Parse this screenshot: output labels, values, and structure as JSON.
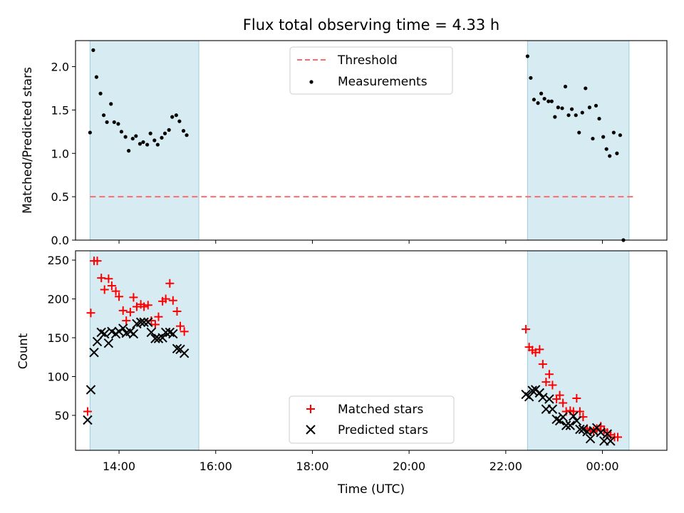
{
  "chart_data": [
    {
      "type": "scatter",
      "title": "Flux total observing time = 4.33 h",
      "xlabel": "",
      "ylabel": "Matched/Predicted stars",
      "xlim": [
        "13:06",
        "01:20"
      ],
      "ylim": [
        0,
        2.3
      ],
      "yticks": [
        0.0,
        0.5,
        1.0,
        1.5,
        2.0
      ],
      "ytick_labels": [
        "0.0",
        "0.5",
        "1.0",
        "1.5",
        "2.0"
      ],
      "grid": false,
      "legend_placement": "top-center",
      "legend": [
        "Threshold",
        "Measurements"
      ],
      "shaded_intervals": [
        [
          "13:24",
          "15:39"
        ],
        [
          "22:27",
          "00:33"
        ]
      ],
      "threshold": {
        "name": "Threshold",
        "y": 0.5,
        "x_range": [
          "13:24",
          "00:40"
        ],
        "style": "dashed",
        "color": "#ff6b6b"
      },
      "series": [
        {
          "name": "Measurements",
          "color": "#000000",
          "points": [
            [
              "13:24",
              1.24
            ],
            [
              "13:28",
              2.19
            ],
            [
              "13:32",
              1.88
            ],
            [
              "13:37",
              1.69
            ],
            [
              "13:41",
              1.44
            ],
            [
              "13:45",
              1.36
            ],
            [
              "13:50",
              1.57
            ],
            [
              "13:54",
              1.36
            ],
            [
              "13:59",
              1.34
            ],
            [
              "14:03",
              1.25
            ],
            [
              "14:08",
              1.19
            ],
            [
              "14:12",
              1.03
            ],
            [
              "14:17",
              1.17
            ],
            [
              "14:21",
              1.2
            ],
            [
              "14:26",
              1.11
            ],
            [
              "14:30",
              1.13
            ],
            [
              "14:35",
              1.1
            ],
            [
              "14:39",
              1.23
            ],
            [
              "14:44",
              1.15
            ],
            [
              "14:48",
              1.1
            ],
            [
              "14:53",
              1.18
            ],
            [
              "14:57",
              1.23
            ],
            [
              "15:02",
              1.27
            ],
            [
              "15:06",
              1.42
            ],
            [
              "15:11",
              1.44
            ],
            [
              "15:15",
              1.37
            ],
            [
              "15:20",
              1.26
            ],
            [
              "15:24",
              1.21
            ],
            [
              "22:27",
              2.12
            ],
            [
              "22:31",
              1.87
            ],
            [
              "22:35",
              1.62
            ],
            [
              "22:40",
              1.58
            ],
            [
              "22:44",
              1.69
            ],
            [
              "22:48",
              1.63
            ],
            [
              "22:53",
              1.6
            ],
            [
              "22:57",
              1.6
            ],
            [
              "23:01",
              1.42
            ],
            [
              "23:05",
              1.53
            ],
            [
              "23:10",
              1.52
            ],
            [
              "23:14",
              1.77
            ],
            [
              "23:18",
              1.44
            ],
            [
              "23:22",
              1.51
            ],
            [
              "23:27",
              1.44
            ],
            [
              "23:31",
              1.24
            ],
            [
              "23:35",
              1.47
            ],
            [
              "23:39",
              1.75
            ],
            [
              "23:44",
              1.53
            ],
            [
              "23:48",
              1.17
            ],
            [
              "23:52",
              1.55
            ],
            [
              "23:56",
              1.4
            ],
            [
              "00:01",
              1.19
            ],
            [
              "00:05",
              1.05
            ],
            [
              "00:09",
              0.97
            ],
            [
              "00:14",
              1.24
            ],
            [
              "00:18",
              1.0
            ],
            [
              "00:22",
              1.21
            ],
            [
              "00:26",
              0.0
            ]
          ]
        }
      ]
    },
    {
      "type": "scatter",
      "title": "",
      "xlabel": "Time (UTC)",
      "ylabel": "Count",
      "xlim": [
        "13:06",
        "01:20"
      ],
      "ylim": [
        5,
        262
      ],
      "yticks": [
        50,
        100,
        150,
        200,
        250
      ],
      "ytick_labels": [
        "50",
        "100",
        "150",
        "200",
        "250"
      ],
      "xticks": [
        "14:00",
        "16:00",
        "18:00",
        "20:00",
        "22:00",
        "00:00"
      ],
      "xtick_labels": [
        "14:00",
        "16:00",
        "18:00",
        "20:00",
        "22:00",
        "00:00"
      ],
      "grid": false,
      "legend_placement": "bottom-center",
      "legend": [
        "Matched stars",
        "Predicted stars"
      ],
      "shaded_intervals": [
        [
          "13:24",
          "15:39"
        ],
        [
          "22:27",
          "00:33"
        ]
      ],
      "series": [
        {
          "name": "Matched stars",
          "marker": "+",
          "color": "#ff0000",
          "points": [
            [
              "13:21",
              55
            ],
            [
              "13:25",
              182
            ],
            [
              "13:29",
              249
            ],
            [
              "13:33",
              249
            ],
            [
              "13:38",
              227
            ],
            [
              "13:42",
              212
            ],
            [
              "13:47",
              226
            ],
            [
              "13:51",
              217
            ],
            [
              "13:56",
              210
            ],
            [
              "14:00",
              203
            ],
            [
              "14:05",
              185
            ],
            [
              "14:09",
              172
            ],
            [
              "14:14",
              183
            ],
            [
              "14:18",
              202
            ],
            [
              "14:22",
              190
            ],
            [
              "14:27",
              193
            ],
            [
              "14:31",
              190
            ],
            [
              "14:36",
              192
            ],
            [
              "14:40",
              172
            ],
            [
              "14:45",
              167
            ],
            [
              "14:49",
              177
            ],
            [
              "14:54",
              197
            ],
            [
              "14:58",
              200
            ],
            [
              "15:03",
              220
            ],
            [
              "15:07",
              198
            ],
            [
              "15:12",
              184
            ],
            [
              "15:16",
              165
            ],
            [
              "15:21",
              158
            ],
            [
              "22:25",
              161
            ],
            [
              "22:29",
              138
            ],
            [
              "22:33",
              134
            ],
            [
              "22:37",
              131
            ],
            [
              "22:42",
              135
            ],
            [
              "22:46",
              116
            ],
            [
              "22:50",
              93
            ],
            [
              "22:54",
              103
            ],
            [
              "22:58",
              89
            ],
            [
              "23:03",
              71
            ],
            [
              "23:07",
              76
            ],
            [
              "23:11",
              66
            ],
            [
              "23:15",
              55
            ],
            [
              "23:20",
              56
            ],
            [
              "23:24",
              55
            ],
            [
              "23:28",
              72
            ],
            [
              "23:32",
              55
            ],
            [
              "23:36",
              48
            ],
            [
              "23:41",
              33
            ],
            [
              "23:45",
              30
            ],
            [
              "23:49",
              30
            ],
            [
              "23:53",
              33
            ],
            [
              "23:58",
              36
            ],
            [
              "00:02",
              31
            ],
            [
              "00:06",
              28
            ],
            [
              "00:10",
              25
            ],
            [
              "00:15",
              22
            ],
            [
              "00:19",
              22
            ]
          ]
        },
        {
          "name": "Predicted stars",
          "marker": "x",
          "color": "#000000",
          "points": [
            [
              "13:21",
              44
            ],
            [
              "13:25",
              83
            ],
            [
              "13:29",
              131
            ],
            [
              "13:33",
              145
            ],
            [
              "13:38",
              157
            ],
            [
              "13:42",
              155
            ],
            [
              "13:47",
              143
            ],
            [
              "13:51",
              158
            ],
            [
              "13:56",
              155
            ],
            [
              "14:00",
              158
            ],
            [
              "14:05",
              162
            ],
            [
              "14:09",
              156
            ],
            [
              "14:14",
              158
            ],
            [
              "14:18",
              155
            ],
            [
              "14:22",
              168
            ],
            [
              "14:27",
              170
            ],
            [
              "14:31",
              170
            ],
            [
              "14:36",
              170
            ],
            [
              "14:40",
              157
            ],
            [
              "14:45",
              149
            ],
            [
              "14:49",
              149
            ],
            [
              "14:54",
              150
            ],
            [
              "14:58",
              157
            ],
            [
              "15:03",
              157
            ],
            [
              "15:07",
              155
            ],
            [
              "15:12",
              136
            ],
            [
              "15:16",
              135
            ],
            [
              "15:21",
              130
            ],
            [
              "22:25",
              77
            ],
            [
              "22:29",
              74
            ],
            [
              "22:33",
              82
            ],
            [
              "22:37",
              83
            ],
            [
              "22:42",
              79
            ],
            [
              "22:46",
              73
            ],
            [
              "22:50",
              58
            ],
            [
              "22:54",
              71
            ],
            [
              "22:58",
              58
            ],
            [
              "23:03",
              45
            ],
            [
              "23:07",
              43
            ],
            [
              "23:11",
              48
            ],
            [
              "23:15",
              37
            ],
            [
              "23:20",
              37
            ],
            [
              "23:24",
              49
            ],
            [
              "23:28",
              43
            ],
            [
              "23:32",
              32
            ],
            [
              "23:36",
              32
            ],
            [
              "23:41",
              29
            ],
            [
              "23:45",
              20
            ],
            [
              "23:49",
              30
            ],
            [
              "23:53",
              34
            ],
            [
              "23:58",
              28
            ],
            [
              "00:02",
              17
            ],
            [
              "00:06",
              26
            ],
            [
              "00:10",
              17
            ]
          ]
        }
      ]
    }
  ]
}
